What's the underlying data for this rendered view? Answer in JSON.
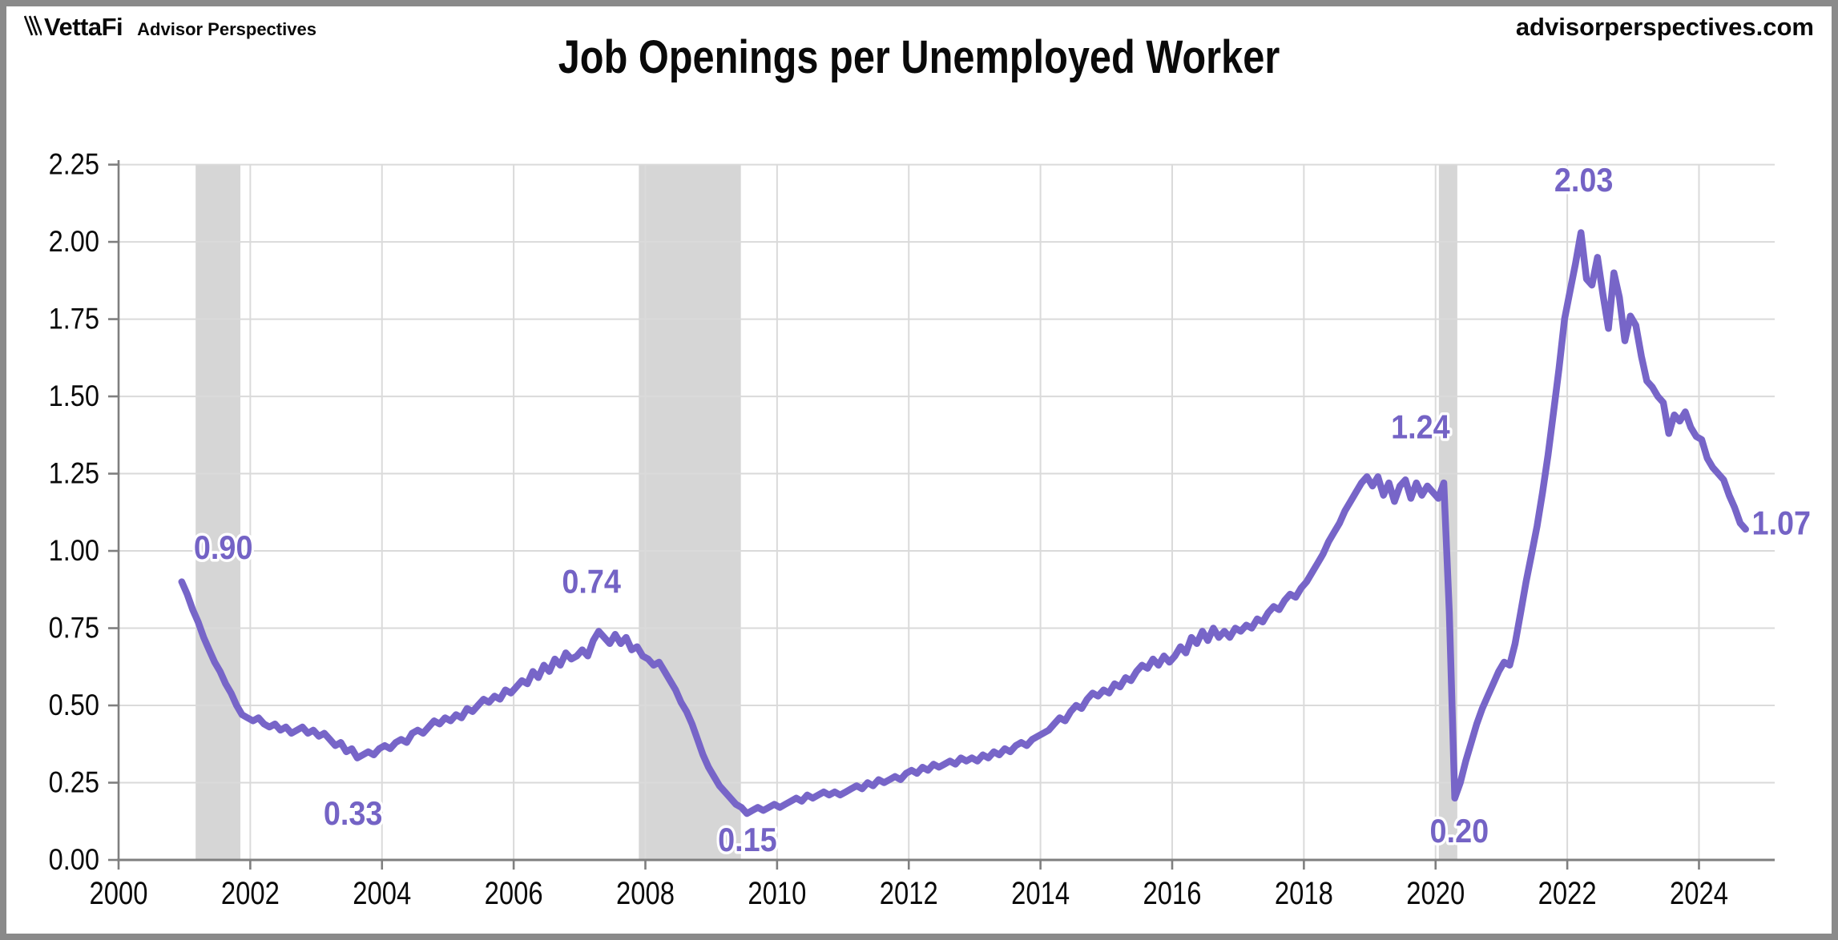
{
  "header": {
    "logo_primary": "VettaFi",
    "logo_secondary": "Advisor Perspectives",
    "website": "advisorperspectives.com",
    "title": "Job Openings per Unemployed Worker"
  },
  "colors": {
    "line": "#7765C8",
    "annotation_text": "#7463C5",
    "annotation_halo": "#ffffff",
    "gridline": "#DADADA",
    "axis": "#7F7F7F",
    "recession_band": "#D6D6D6",
    "frame_border": "#8A8A8A",
    "text": "#0A0A0A",
    "background": "#FFFFFF"
  },
  "chart_data": {
    "type": "line",
    "title": "Job Openings per Unemployed Worker",
    "xlabel": "",
    "ylabel": "",
    "grid": true,
    "x_axis": {
      "range": [
        2000,
        2025.15
      ],
      "tick_years": [
        2000,
        2002,
        2004,
        2006,
        2008,
        2010,
        2012,
        2014,
        2016,
        2018,
        2020,
        2022,
        2024
      ],
      "tick_labels": [
        "2000",
        "2002",
        "2004",
        "2006",
        "2008",
        "2010",
        "2012",
        "2014",
        "2016",
        "2018",
        "2020",
        "2022",
        "2024"
      ]
    },
    "y_axis": {
      "range": [
        0,
        2.25
      ],
      "major_unit": 0.25,
      "tick_values": [
        0,
        0.25,
        0.5,
        0.75,
        1.0,
        1.25,
        1.5,
        1.75,
        2.0,
        2.25
      ],
      "tick_labels": [
        "0.00",
        "0.25",
        "0.50",
        "0.75",
        "1.00",
        "1.25",
        "1.50",
        "1.75",
        "2.00",
        "2.25"
      ]
    },
    "recession_bands": [
      {
        "from": 2001.17,
        "to": 2001.85
      },
      {
        "from": 2007.9,
        "to": 2009.45
      },
      {
        "from": 2020.05,
        "to": 2020.33
      }
    ],
    "series": [
      {
        "name": "Job openings per unemployed worker",
        "frequency": "monthly",
        "start": "2000-12",
        "values": [
          0.9,
          0.86,
          0.81,
          0.77,
          0.72,
          0.68,
          0.64,
          0.61,
          0.57,
          0.54,
          0.5,
          0.47,
          0.46,
          0.45,
          0.46,
          0.44,
          0.43,
          0.44,
          0.42,
          0.43,
          0.41,
          0.42,
          0.43,
          0.41,
          0.42,
          0.4,
          0.41,
          0.39,
          0.37,
          0.38,
          0.35,
          0.36,
          0.33,
          0.34,
          0.35,
          0.34,
          0.36,
          0.37,
          0.36,
          0.38,
          0.39,
          0.38,
          0.41,
          0.42,
          0.41,
          0.43,
          0.45,
          0.44,
          0.46,
          0.45,
          0.47,
          0.46,
          0.49,
          0.48,
          0.5,
          0.52,
          0.51,
          0.53,
          0.52,
          0.55,
          0.54,
          0.56,
          0.58,
          0.57,
          0.61,
          0.59,
          0.63,
          0.61,
          0.65,
          0.63,
          0.67,
          0.65,
          0.66,
          0.68,
          0.66,
          0.71,
          0.74,
          0.72,
          0.7,
          0.73,
          0.7,
          0.72,
          0.68,
          0.69,
          0.66,
          0.65,
          0.63,
          0.64,
          0.61,
          0.58,
          0.55,
          0.51,
          0.48,
          0.44,
          0.39,
          0.34,
          0.3,
          0.27,
          0.24,
          0.22,
          0.2,
          0.18,
          0.17,
          0.15,
          0.16,
          0.17,
          0.16,
          0.17,
          0.18,
          0.17,
          0.18,
          0.19,
          0.2,
          0.19,
          0.21,
          0.2,
          0.21,
          0.22,
          0.21,
          0.22,
          0.21,
          0.22,
          0.23,
          0.24,
          0.23,
          0.25,
          0.24,
          0.26,
          0.25,
          0.26,
          0.27,
          0.26,
          0.28,
          0.29,
          0.28,
          0.3,
          0.29,
          0.31,
          0.3,
          0.31,
          0.32,
          0.31,
          0.33,
          0.32,
          0.33,
          0.32,
          0.34,
          0.33,
          0.35,
          0.34,
          0.36,
          0.35,
          0.37,
          0.38,
          0.37,
          0.39,
          0.4,
          0.41,
          0.42,
          0.44,
          0.46,
          0.45,
          0.48,
          0.5,
          0.49,
          0.52,
          0.54,
          0.53,
          0.55,
          0.54,
          0.57,
          0.56,
          0.59,
          0.58,
          0.61,
          0.63,
          0.62,
          0.65,
          0.63,
          0.66,
          0.64,
          0.66,
          0.69,
          0.67,
          0.72,
          0.7,
          0.74,
          0.71,
          0.75,
          0.72,
          0.74,
          0.72,
          0.75,
          0.74,
          0.76,
          0.75,
          0.78,
          0.77,
          0.8,
          0.82,
          0.81,
          0.84,
          0.86,
          0.85,
          0.88,
          0.9,
          0.93,
          0.96,
          0.99,
          1.03,
          1.06,
          1.09,
          1.13,
          1.16,
          1.19,
          1.22,
          1.24,
          1.21,
          1.24,
          1.18,
          1.22,
          1.16,
          1.21,
          1.23,
          1.17,
          1.22,
          1.18,
          1.21,
          1.19,
          1.17,
          1.22,
          0.8,
          0.2,
          0.25,
          0.32,
          0.38,
          0.44,
          0.49,
          0.53,
          0.57,
          0.61,
          0.64,
          0.63,
          0.7,
          0.8,
          0.9,
          0.99,
          1.08,
          1.19,
          1.31,
          1.45,
          1.59,
          1.75,
          1.84,
          1.93,
          2.03,
          1.88,
          1.86,
          1.95,
          1.83,
          1.72,
          1.9,
          1.82,
          1.68,
          1.76,
          1.73,
          1.63,
          1.55,
          1.53,
          1.5,
          1.48,
          1.38,
          1.44,
          1.42,
          1.45,
          1.4,
          1.37,
          1.36,
          1.3,
          1.27,
          1.25,
          1.23,
          1.18,
          1.14,
          1.09,
          1.07
        ]
      }
    ],
    "annotations": [
      {
        "label": "0.90",
        "x": 2001.59,
        "y": 1.01
      },
      {
        "label": "0.33",
        "x": 2003.56,
        "y": 0.15
      },
      {
        "label": "0.74",
        "x": 2007.18,
        "y": 0.9
      },
      {
        "label": "0.15",
        "x": 2009.55,
        "y": 0.065
      },
      {
        "label": "1.24",
        "x": 2019.77,
        "y": 1.4
      },
      {
        "label": "0.20",
        "x": 2020.36,
        "y": 0.093
      },
      {
        "label": "2.03",
        "x": 2022.25,
        "y": 2.2
      },
      {
        "label": "1.07",
        "x": 2025.25,
        "y": 1.09
      }
    ],
    "legend": {
      "visible": false
    }
  }
}
